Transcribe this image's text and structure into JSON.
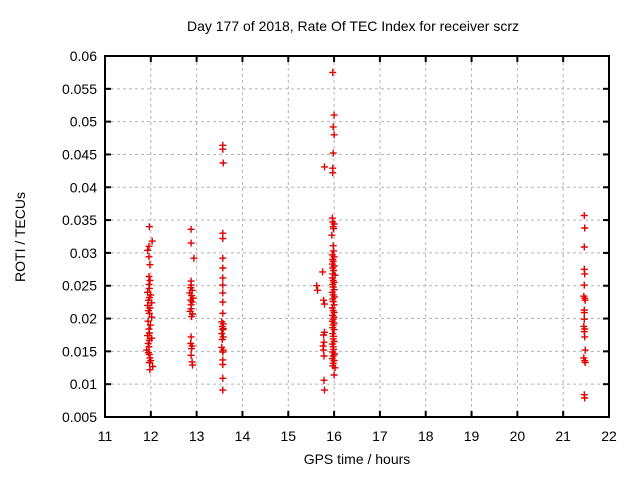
{
  "window": {
    "background": "#ffffff"
  },
  "chart_data": {
    "type": "scatter",
    "title": "Day 177 of 2018, Rate Of TEC Index for receiver scrz",
    "xlabel": "GPS time / hours",
    "ylabel": "ROTI / TECUs",
    "xlim": [
      11,
      22
    ],
    "ylim": [
      0.005,
      0.06
    ],
    "xticks": [
      11,
      12,
      13,
      14,
      15,
      16,
      17,
      18,
      19,
      20,
      21,
      22
    ],
    "yticks": [
      0.005,
      0.01,
      0.015,
      0.02,
      0.025,
      0.03,
      0.035,
      0.04,
      0.045,
      0.05,
      0.055,
      0.06
    ],
    "grid": true,
    "legend_position": "none",
    "marker": "plus",
    "marker_color": "#e00000",
    "grid_color": "#b3b3b3",
    "axis_color": "#000000",
    "points": [
      [
        11.97,
        0.034
      ],
      [
        12.03,
        0.0318
      ],
      [
        11.96,
        0.031
      ],
      [
        11.93,
        0.0304
      ],
      [
        11.96,
        0.0294
      ],
      [
        11.98,
        0.0282
      ],
      [
        11.96,
        0.0264
      ],
      [
        11.98,
        0.0258
      ],
      [
        11.96,
        0.0252
      ],
      [
        11.97,
        0.0246
      ],
      [
        11.93,
        0.024
      ],
      [
        12.0,
        0.0236
      ],
      [
        11.97,
        0.0232
      ],
      [
        11.95,
        0.0228
      ],
      [
        12.02,
        0.0224
      ],
      [
        11.93,
        0.022
      ],
      [
        11.98,
        0.0216
      ],
      [
        11.95,
        0.0212
      ],
      [
        11.97,
        0.0208
      ],
      [
        12.02,
        0.0202
      ],
      [
        11.94,
        0.0196
      ],
      [
        11.99,
        0.019
      ],
      [
        11.96,
        0.0184
      ],
      [
        11.97,
        0.0178
      ],
      [
        11.93,
        0.0174
      ],
      [
        12.02,
        0.017
      ],
      [
        11.97,
        0.0167
      ],
      [
        11.94,
        0.0162
      ],
      [
        11.96,
        0.0157
      ],
      [
        11.91,
        0.0152
      ],
      [
        11.95,
        0.0148
      ],
      [
        11.97,
        0.0145
      ],
      [
        11.98,
        0.014
      ],
      [
        12.0,
        0.0136
      ],
      [
        11.97,
        0.0133
      ],
      [
        12.04,
        0.0127
      ],
      [
        11.98,
        0.0122
      ],
      [
        12.88,
        0.0336
      ],
      [
        12.88,
        0.0315
      ],
      [
        12.94,
        0.0292
      ],
      [
        12.88,
        0.0257
      ],
      [
        12.88,
        0.0251
      ],
      [
        12.87,
        0.0247
      ],
      [
        12.9,
        0.0243
      ],
      [
        12.85,
        0.0239
      ],
      [
        12.89,
        0.0235
      ],
      [
        12.92,
        0.0231
      ],
      [
        12.87,
        0.0228
      ],
      [
        12.9,
        0.0225
      ],
      [
        12.88,
        0.0221
      ],
      [
        12.88,
        0.0215
      ],
      [
        12.86,
        0.0211
      ],
      [
        12.91,
        0.0207
      ],
      [
        12.89,
        0.0203
      ],
      [
        12.88,
        0.0172
      ],
      [
        12.87,
        0.0162
      ],
      [
        12.9,
        0.0158
      ],
      [
        12.89,
        0.0154
      ],
      [
        12.88,
        0.0144
      ],
      [
        12.9,
        0.0134
      ],
      [
        12.91,
        0.0129
      ],
      [
        13.57,
        0.0464
      ],
      [
        13.57,
        0.0458
      ],
      [
        13.58,
        0.0437
      ],
      [
        13.57,
        0.033
      ],
      [
        13.57,
        0.0322
      ],
      [
        13.57,
        0.0292
      ],
      [
        13.57,
        0.0277
      ],
      [
        13.57,
        0.0262
      ],
      [
        13.57,
        0.0251
      ],
      [
        13.57,
        0.0239
      ],
      [
        13.57,
        0.0225
      ],
      [
        13.57,
        0.0208
      ],
      [
        13.55,
        0.0195
      ],
      [
        13.58,
        0.0192
      ],
      [
        13.56,
        0.0188
      ],
      [
        13.58,
        0.0185
      ],
      [
        13.57,
        0.0183
      ],
      [
        13.55,
        0.0177
      ],
      [
        13.58,
        0.0172
      ],
      [
        13.56,
        0.0168
      ],
      [
        13.55,
        0.0156
      ],
      [
        13.58,
        0.0152
      ],
      [
        13.57,
        0.0149
      ],
      [
        13.57,
        0.0137
      ],
      [
        13.57,
        0.013
      ],
      [
        13.57,
        0.0109
      ],
      [
        13.57,
        0.0091
      ],
      [
        15.97,
        0.0575
      ],
      [
        16.0,
        0.051
      ],
      [
        15.98,
        0.0492
      ],
      [
        16.0,
        0.048
      ],
      [
        15.98,
        0.0452
      ],
      [
        15.79,
        0.0431
      ],
      [
        15.97,
        0.0429
      ],
      [
        15.97,
        0.0422
      ],
      [
        15.96,
        0.0353
      ],
      [
        15.97,
        0.0347
      ],
      [
        16.0,
        0.0344
      ],
      [
        15.98,
        0.034
      ],
      [
        15.99,
        0.0337
      ],
      [
        15.95,
        0.0327
      ],
      [
        15.98,
        0.0311
      ],
      [
        15.99,
        0.0303
      ],
      [
        15.96,
        0.0297
      ],
      [
        16.0,
        0.0294
      ],
      [
        15.97,
        0.029
      ],
      [
        15.98,
        0.0287
      ],
      [
        15.96,
        0.0283
      ],
      [
        16.0,
        0.028
      ],
      [
        15.97,
        0.0277
      ],
      [
        15.99,
        0.0273
      ],
      [
        15.75,
        0.0271
      ],
      [
        15.97,
        0.0268
      ],
      [
        16.02,
        0.0266
      ],
      [
        15.96,
        0.0262
      ],
      [
        15.98,
        0.0258
      ],
      [
        16.0,
        0.0255
      ],
      [
        15.97,
        0.0252
      ],
      [
        15.62,
        0.025
      ],
      [
        15.64,
        0.0243
      ],
      [
        15.98,
        0.0248
      ],
      [
        16.0,
        0.0244
      ],
      [
        15.96,
        0.024
      ],
      [
        15.98,
        0.0236
      ],
      [
        16.01,
        0.0233
      ],
      [
        15.97,
        0.023
      ],
      [
        15.77,
        0.0228
      ],
      [
        15.79,
        0.0222
      ],
      [
        15.98,
        0.0226
      ],
      [
        16.0,
        0.0221
      ],
      [
        15.96,
        0.0216
      ],
      [
        15.98,
        0.0212
      ],
      [
        16.0,
        0.0209
      ],
      [
        15.97,
        0.0205
      ],
      [
        16.0,
        0.0202
      ],
      [
        15.98,
        0.0199
      ],
      [
        15.96,
        0.0196
      ],
      [
        16.0,
        0.0193
      ],
      [
        15.98,
        0.019
      ],
      [
        15.97,
        0.0186
      ],
      [
        16.0,
        0.0183
      ],
      [
        15.79,
        0.0179
      ],
      [
        15.77,
        0.0175
      ],
      [
        15.97,
        0.0177
      ],
      [
        15.99,
        0.0173
      ],
      [
        15.98,
        0.0169
      ],
      [
        16.0,
        0.0165
      ],
      [
        15.96,
        0.0161
      ],
      [
        15.78,
        0.0164
      ],
      [
        15.76,
        0.0158
      ],
      [
        15.98,
        0.0157
      ],
      [
        15.77,
        0.0152
      ],
      [
        15.99,
        0.0153
      ],
      [
        15.97,
        0.0149
      ],
      [
        16.01,
        0.0146
      ],
      [
        15.98,
        0.0143
      ],
      [
        15.78,
        0.0143
      ],
      [
        15.96,
        0.0139
      ],
      [
        16.0,
        0.0136
      ],
      [
        15.98,
        0.0132
      ],
      [
        15.97,
        0.0128
      ],
      [
        16.02,
        0.0125
      ],
      [
        16.0,
        0.0114
      ],
      [
        15.78,
        0.0106
      ],
      [
        15.79,
        0.0091
      ],
      [
        21.46,
        0.0357
      ],
      [
        21.47,
        0.0338
      ],
      [
        21.46,
        0.0309
      ],
      [
        21.46,
        0.0275
      ],
      [
        21.47,
        0.0268
      ],
      [
        21.46,
        0.0251
      ],
      [
        21.45,
        0.0234
      ],
      [
        21.47,
        0.0231
      ],
      [
        21.48,
        0.0228
      ],
      [
        21.46,
        0.0213
      ],
      [
        21.46,
        0.0209
      ],
      [
        21.46,
        0.0199
      ],
      [
        21.45,
        0.0188
      ],
      [
        21.47,
        0.0184
      ],
      [
        21.46,
        0.018
      ],
      [
        21.47,
        0.0172
      ],
      [
        21.48,
        0.0152
      ],
      [
        21.45,
        0.014
      ],
      [
        21.47,
        0.0136
      ],
      [
        21.48,
        0.0133
      ],
      [
        21.46,
        0.0084
      ],
      [
        21.47,
        0.0079
      ]
    ]
  }
}
